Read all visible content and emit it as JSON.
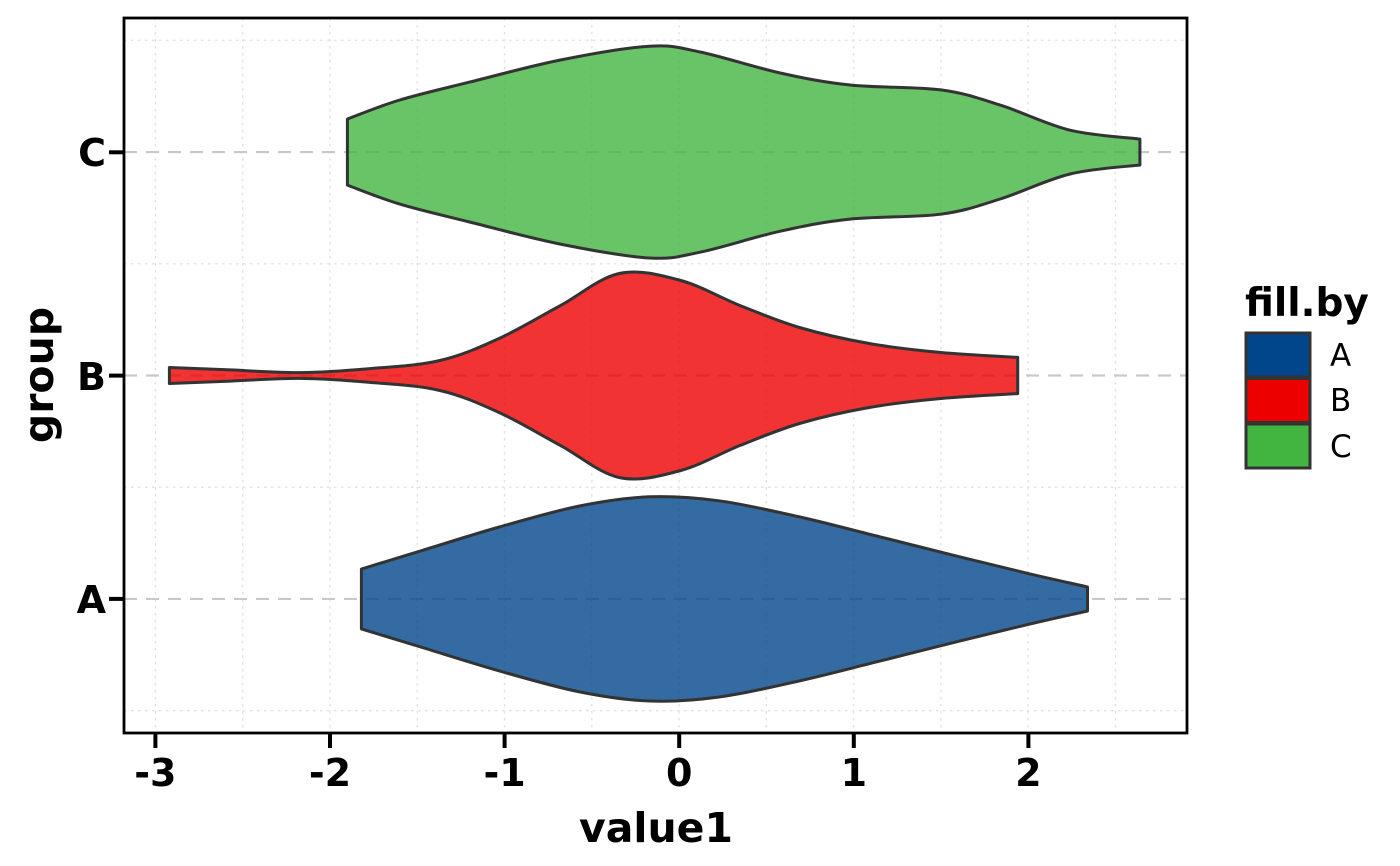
{
  "chart_data": {
    "type": "violin",
    "orientation": "horizontal",
    "title": "",
    "xlabel": "value1",
    "ylabel": "group",
    "x_ticks": [
      -3,
      -2,
      -1,
      0,
      1,
      2
    ],
    "x_tick_labels": [
      "-3",
      "-2",
      "-1",
      "0",
      "1",
      "2"
    ],
    "xlim": [
      -3.18,
      2.91
    ],
    "ylim": [
      0.4,
      3.6
    ],
    "x_minor_step": 0.5,
    "categories": [
      "A",
      "B",
      "C"
    ],
    "grid": {
      "h_major_style": "dashed",
      "minor_style": "dotted",
      "major_color": "#C9C9C9",
      "minor_color": "#E2E2E2"
    },
    "style": {
      "outline_color": "#333333",
      "outline_width": 3,
      "fill_alpha": 0.8,
      "background": "#FFFFFF"
    },
    "violins": [
      {
        "group": "A",
        "color": "#00468B",
        "min": -1.82,
        "max": 2.34,
        "peak_at": -0.17,
        "profile": [
          [
            -1.82,
            0.134
          ],
          [
            -1.48,
            0.215
          ],
          [
            -1.03,
            0.322
          ],
          [
            -0.57,
            0.416
          ],
          [
            -0.17,
            0.457
          ],
          [
            0.23,
            0.439
          ],
          [
            0.69,
            0.367
          ],
          [
            1.15,
            0.278
          ],
          [
            1.61,
            0.188
          ],
          [
            2.01,
            0.112
          ],
          [
            2.34,
            0.054
          ]
        ]
      },
      {
        "group": "B",
        "color": "#ED0000",
        "min": -2.92,
        "max": 1.94,
        "peak_at": -0.34,
        "profile": [
          [
            -2.92,
            0.036
          ],
          [
            -2.57,
            0.025
          ],
          [
            -2.17,
            0.013
          ],
          [
            -1.77,
            0.031
          ],
          [
            -1.37,
            0.067
          ],
          [
            -1.03,
            0.166
          ],
          [
            -0.68,
            0.313
          ],
          [
            -0.34,
            0.457
          ],
          [
            0.01,
            0.425
          ],
          [
            0.35,
            0.313
          ],
          [
            0.69,
            0.215
          ],
          [
            1.09,
            0.143
          ],
          [
            1.5,
            0.103
          ],
          [
            1.94,
            0.081
          ]
        ]
      },
      {
        "group": "C",
        "color": "#42B540",
        "min": -1.9,
        "max": 2.64,
        "peak_at": -0.17,
        "profile": [
          [
            -1.9,
            0.148
          ],
          [
            -1.6,
            0.233
          ],
          [
            -1.2,
            0.313
          ],
          [
            -0.68,
            0.412
          ],
          [
            -0.17,
            0.474
          ],
          [
            0.12,
            0.448
          ],
          [
            0.58,
            0.354
          ],
          [
            0.98,
            0.3
          ],
          [
            1.5,
            0.278
          ],
          [
            1.84,
            0.21
          ],
          [
            2.24,
            0.098
          ],
          [
            2.64,
            0.058
          ]
        ]
      }
    ]
  },
  "legend": {
    "title": "fill.by",
    "items": [
      {
        "label": "A",
        "color": "#00468B"
      },
      {
        "label": "B",
        "color": "#ED0000"
      },
      {
        "label": "C",
        "color": "#42B540"
      }
    ]
  }
}
